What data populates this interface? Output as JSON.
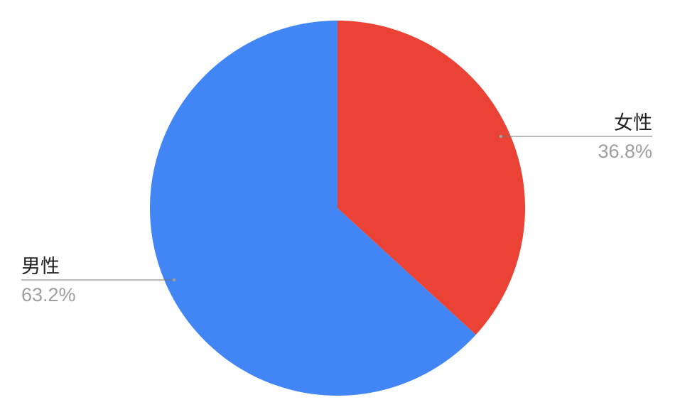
{
  "chart_data": {
    "type": "pie",
    "title": "",
    "start": "top",
    "direction": "clockwise",
    "slices": [
      {
        "label": "女性",
        "value": 36.8,
        "display": "36.8%",
        "color": "#EA4335",
        "label_side": "right"
      },
      {
        "label": "男性",
        "value": 63.2,
        "display": "63.2%",
        "color": "#4285F4",
        "label_side": "left"
      }
    ],
    "leader_line_color": "#757575"
  }
}
